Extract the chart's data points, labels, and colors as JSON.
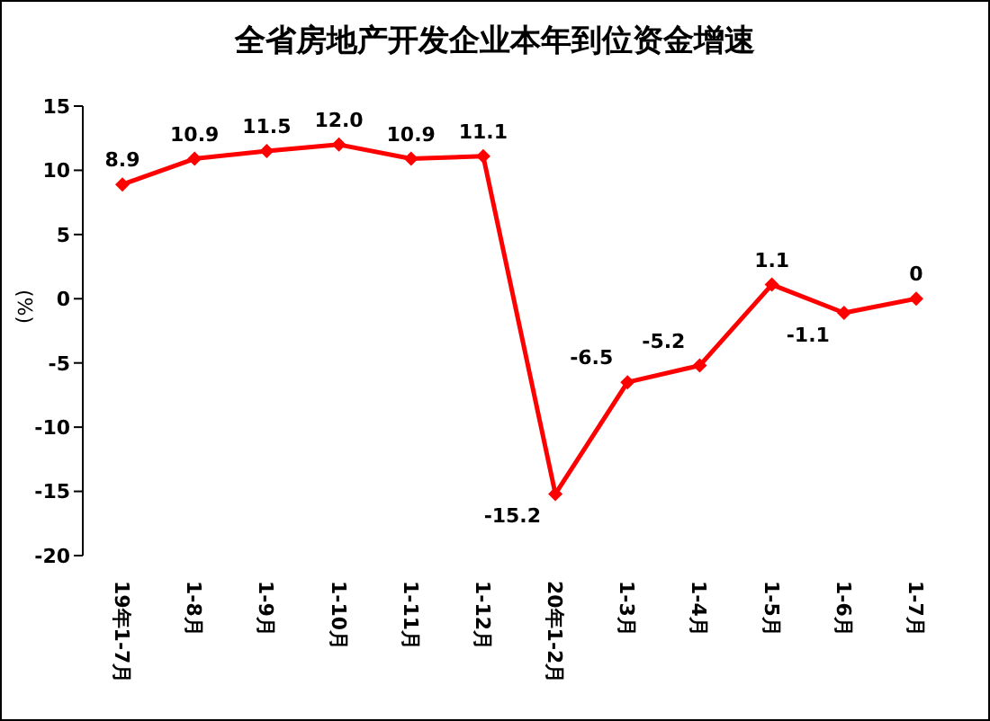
{
  "chart_data": {
    "type": "line",
    "title": "全省房地产开发企业本年到位资金增速",
    "ylabel": "(%)",
    "categories": [
      "19年1-7月",
      "1-8月",
      "1-9月",
      "1-10月",
      "1-11月",
      "1-12月",
      "20年1-2月",
      "1-3月",
      "1-4月",
      "1-5月",
      "1-6月",
      "1-7月"
    ],
    "series": [
      {
        "color": "#ff0000",
        "values": [
          8.9,
          10.9,
          11.5,
          12.0,
          10.9,
          11.1,
          -15.2,
          -6.5,
          -5.2,
          1.1,
          -1.1,
          0
        ],
        "value_labels": [
          "8.9",
          "10.9",
          "11.5",
          "12.0",
          "10.9",
          "11.1",
          "-15.2",
          "-6.5",
          "-5.2",
          "1.1",
          "-1.1",
          "0"
        ]
      }
    ],
    "ylim": [
      -20,
      15
    ],
    "yticks": [
      -20,
      -15,
      -10,
      -5,
      0,
      5,
      10,
      15
    ],
    "grid": false,
    "legend": false,
    "marker": "diamond",
    "line_style": "solid"
  }
}
